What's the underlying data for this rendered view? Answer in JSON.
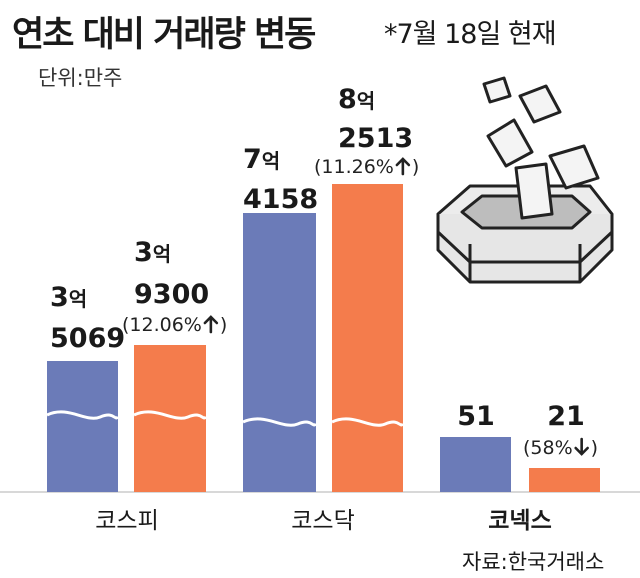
{
  "header": {
    "title": "연초 대비 거래량 변동",
    "note": "*7월 18일 현재",
    "unit": "단위:만주"
  },
  "source": "자료:한국거래소",
  "colors": {
    "start": "#6b7bb8",
    "current": "#f47c4c",
    "baseline": "#d8d8d8"
  },
  "chart_data": {
    "type": "bar",
    "categories": [
      "코스피",
      "코스닥",
      "코넥스"
    ],
    "series": [
      {
        "values": [
          35069,
          74158,
          51
        ]
      },
      {
        "values": [
          39300,
          82513,
          21
        ]
      }
    ],
    "value_labels": [
      [
        [
          "3억",
          "5069"
        ],
        [
          "3억",
          "9300"
        ]
      ],
      [
        [
          "7억",
          "4158"
        ],
        [
          "8억",
          "2513"
        ]
      ],
      [
        [
          "",
          "51"
        ],
        [
          "",
          "21"
        ]
      ]
    ],
    "change_labels": [
      "(12.06%",
      "(11.26%",
      "(58%"
    ],
    "change_direction": [
      "up",
      "up",
      "down"
    ],
    "axis_break": [
      true,
      true,
      false
    ],
    "ylabel": "단위:만주"
  }
}
